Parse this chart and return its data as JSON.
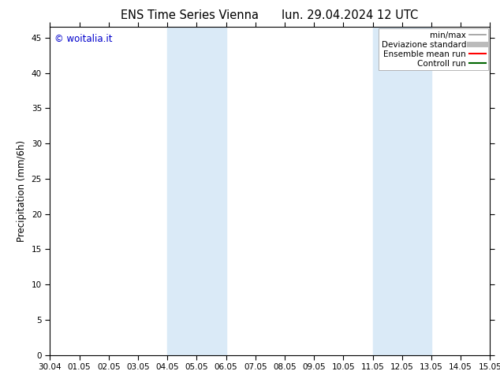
{
  "title_left": "ENS Time Series Vienna",
  "title_right": "lun. 29.04.2024 12 UTC",
  "ylabel": "Precipitation (mm/6h)",
  "watermark": "© woitalia.it",
  "watermark_color": "#0000cc",
  "x_labels": [
    "30.04",
    "01.05",
    "02.05",
    "03.05",
    "04.05",
    "05.05",
    "06.05",
    "07.05",
    "08.05",
    "09.05",
    "10.05",
    "11.05",
    "12.05",
    "13.05",
    "14.05",
    "15.05"
  ],
  "x_ticks": [
    0,
    1,
    2,
    3,
    4,
    5,
    6,
    7,
    8,
    9,
    10,
    11,
    12,
    13,
    14,
    15
  ],
  "ylim": [
    0,
    46.5
  ],
  "yticks": [
    0,
    5,
    10,
    15,
    20,
    25,
    30,
    35,
    40,
    45
  ],
  "background_color": "#ffffff",
  "plot_bg_color": "#ffffff",
  "shaded_regions": [
    {
      "xmin": 4.0,
      "xmax": 6.0,
      "color": "#daeaf7"
    },
    {
      "xmin": 11.0,
      "xmax": 13.0,
      "color": "#daeaf7"
    }
  ],
  "legend_items": [
    {
      "label": "min/max",
      "color": "#999999",
      "lw": 1.2
    },
    {
      "label": "Deviazione standard",
      "color": "#bbbbbb",
      "lw": 5
    },
    {
      "label": "Ensemble mean run",
      "color": "#ff0000",
      "lw": 1.5
    },
    {
      "label": "Controll run",
      "color": "#006600",
      "lw": 1.5
    }
  ],
  "title_fontsize": 10.5,
  "tick_fontsize": 7.5,
  "ylabel_fontsize": 8.5,
  "watermark_fontsize": 8.5,
  "legend_fontsize": 7.5,
  "border_color": "#000000"
}
